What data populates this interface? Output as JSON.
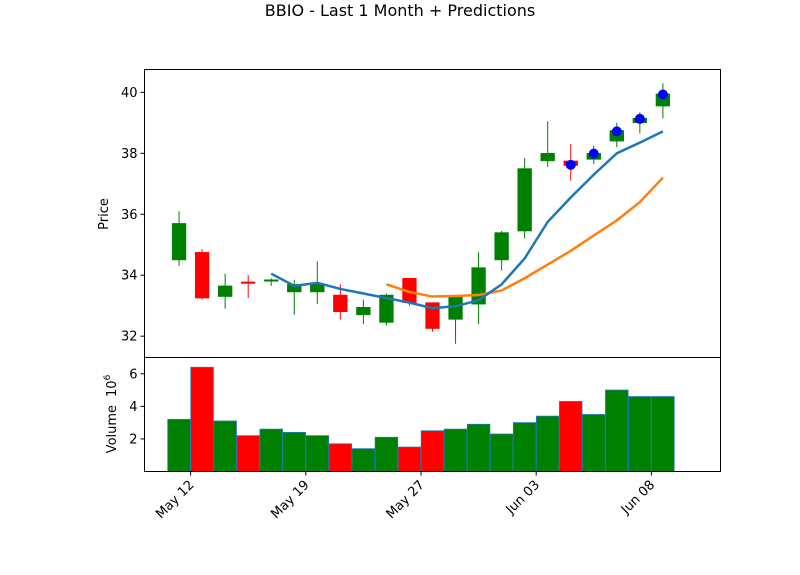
{
  "chart_data": {
    "type": "candlestick",
    "title": "BBIO - Last 1 Month + Predictions",
    "price_axis": {
      "label": "Price",
      "ylim": [
        31.3,
        40.75
      ],
      "ticks": [
        32,
        34,
        36,
        38,
        40
      ]
    },
    "volume_axis": {
      "label": "Volume",
      "exponent_label": "10",
      "exponent_power": "6",
      "ylim": [
        0,
        7.0
      ],
      "ticks": [
        2,
        4,
        6
      ]
    },
    "x_ticks": [
      {
        "label": "May 12",
        "index": 0.5
      },
      {
        "label": "May 19",
        "index": 5.5
      },
      {
        "label": "May 27",
        "index": 10.5
      },
      {
        "label": "Jun 03",
        "index": 15.5
      },
      {
        "label": "Jun 08",
        "index": 20.5
      }
    ],
    "xlim": [
      -1.5,
      23.5
    ],
    "colors": {
      "up": "#008000",
      "down": "#ff0000",
      "ma_short": "#1f77b4",
      "ma_long": "#ff7f0e",
      "prediction_marker": "#0000ff"
    },
    "candles": [
      {
        "open": 34.5,
        "high": 36.1,
        "low": 34.3,
        "close": 35.7,
        "volume": 3.2
      },
      {
        "open": 34.75,
        "high": 34.85,
        "low": 33.2,
        "close": 33.25,
        "volume": 6.4
      },
      {
        "open": 33.3,
        "high": 34.05,
        "low": 32.9,
        "close": 33.65,
        "volume": 3.1
      },
      {
        "open": 33.78,
        "high": 34.0,
        "low": 33.25,
        "close": 33.73,
        "volume": 2.2
      },
      {
        "open": 33.8,
        "high": 33.9,
        "low": 33.65,
        "close": 33.85,
        "volume": 2.6
      },
      {
        "open": 33.45,
        "high": 33.85,
        "low": 32.7,
        "close": 33.7,
        "volume": 2.4
      },
      {
        "open": 33.45,
        "high": 34.45,
        "low": 33.05,
        "close": 33.7,
        "volume": 2.2
      },
      {
        "open": 33.35,
        "high": 33.7,
        "low": 32.55,
        "close": 32.8,
        "volume": 1.7
      },
      {
        "open": 32.7,
        "high": 33.2,
        "low": 32.4,
        "close": 32.95,
        "volume": 1.4
      },
      {
        "open": 32.45,
        "high": 33.4,
        "low": 32.35,
        "close": 33.35,
        "volume": 2.1
      },
      {
        "open": 33.9,
        "high": 33.9,
        "low": 33.0,
        "close": 33.1,
        "volume": 1.5
      },
      {
        "open": 33.1,
        "high": 33.1,
        "low": 32.15,
        "close": 32.25,
        "volume": 2.5
      },
      {
        "open": 32.55,
        "high": 33.35,
        "low": 31.75,
        "close": 33.3,
        "volume": 2.6
      },
      {
        "open": 33.05,
        "high": 34.75,
        "low": 32.4,
        "close": 34.25,
        "volume": 2.9
      },
      {
        "open": 34.5,
        "high": 35.45,
        "low": 34.15,
        "close": 35.4,
        "volume": 2.3
      },
      {
        "open": 35.45,
        "high": 37.85,
        "low": 35.2,
        "close": 37.5,
        "volume": 3.0
      },
      {
        "open": 37.75,
        "high": 39.05,
        "low": 37.55,
        "close": 38.0,
        "volume": 3.4
      },
      {
        "open": 37.75,
        "high": 38.3,
        "low": 37.1,
        "close": 37.6,
        "volume": 4.3
      },
      {
        "open": 37.8,
        "high": 38.25,
        "low": 37.65,
        "close": 38.0,
        "volume": 3.5
      },
      {
        "open": 38.4,
        "high": 39.0,
        "low": 38.2,
        "close": 38.75,
        "volume": 5.0
      },
      {
        "open": 39.0,
        "high": 39.35,
        "low": 38.65,
        "close": 39.15,
        "volume": 4.6
      },
      {
        "open": 39.55,
        "high": 40.3,
        "low": 39.15,
        "close": 39.95,
        "volume": 4.6
      }
    ],
    "predictions": [
      {
        "index": 17,
        "value": 37.62
      },
      {
        "index": 18,
        "value": 37.99
      },
      {
        "index": 19,
        "value": 38.72
      },
      {
        "index": 20,
        "value": 39.13
      },
      {
        "index": 21,
        "value": 39.93
      }
    ],
    "ma_short": [
      {
        "index": 4,
        "value": 34.05
      },
      {
        "index": 5,
        "value": 33.65
      },
      {
        "index": 6,
        "value": 33.75
      },
      {
        "index": 7,
        "value": 33.55
      },
      {
        "index": 8,
        "value": 33.4
      },
      {
        "index": 9,
        "value": 33.25
      },
      {
        "index": 10,
        "value": 33.1
      },
      {
        "index": 11,
        "value": 32.92
      },
      {
        "index": 12,
        "value": 32.98
      },
      {
        "index": 13,
        "value": 33.18
      },
      {
        "index": 14,
        "value": 33.7
      },
      {
        "index": 15,
        "value": 34.55
      },
      {
        "index": 16,
        "value": 35.75
      },
      {
        "index": 17,
        "value": 36.55
      },
      {
        "index": 18,
        "value": 37.3
      },
      {
        "index": 19,
        "value": 38.0
      },
      {
        "index": 20,
        "value": 38.35
      },
      {
        "index": 21,
        "value": 38.72
      }
    ],
    "ma_long": [
      {
        "index": 9,
        "value": 33.7
      },
      {
        "index": 10,
        "value": 33.45
      },
      {
        "index": 11,
        "value": 33.3
      },
      {
        "index": 12,
        "value": 33.32
      },
      {
        "index": 13,
        "value": 33.35
      },
      {
        "index": 14,
        "value": 33.5
      },
      {
        "index": 15,
        "value": 33.9
      },
      {
        "index": 16,
        "value": 34.35
      },
      {
        "index": 17,
        "value": 34.8
      },
      {
        "index": 18,
        "value": 35.3
      },
      {
        "index": 19,
        "value": 35.8
      },
      {
        "index": 20,
        "value": 36.4
      },
      {
        "index": 21,
        "value": 37.2
      }
    ]
  }
}
